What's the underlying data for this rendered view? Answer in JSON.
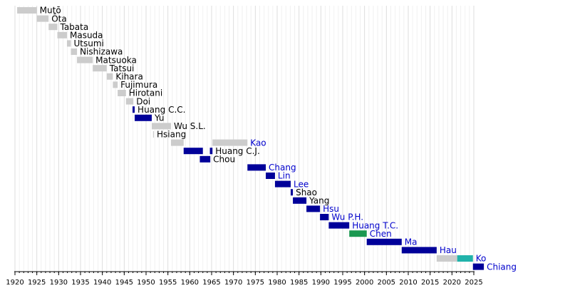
{
  "chart_data": {
    "type": "timeline",
    "title": "",
    "xlabel": "",
    "ylabel": "",
    "xlim": [
      1920,
      2025
    ],
    "x_ticks": [
      1920,
      1925,
      1930,
      1935,
      1940,
      1945,
      1950,
      1955,
      1960,
      1965,
      1970,
      1975,
      1980,
      1985,
      1990,
      1995,
      2000,
      2005,
      2010,
      2015,
      2020,
      2025
    ],
    "minor_grid_step": 1,
    "grid": true,
    "legend": "none",
    "colors": {
      "gray": "#cccccc",
      "navy": "#000099",
      "green": "#1a9850",
      "teal": "#20b2aa",
      "label_link": "#0000cc",
      "label_plain": "#000000",
      "grid_major": "#dddddd",
      "grid_minor": "#f0f0f0",
      "axis": "#000000"
    },
    "entries": [
      {
        "name": "Mutō",
        "start": 1920.5,
        "end": 1925.0,
        "color": "gray",
        "label_color": "label_plain"
      },
      {
        "name": "Ōta",
        "start": 1925.0,
        "end": 1927.7,
        "color": "gray",
        "label_color": "label_plain"
      },
      {
        "name": "Tabata",
        "start": 1927.7,
        "end": 1929.7,
        "color": "gray",
        "label_color": "label_plain"
      },
      {
        "name": "Masuda",
        "start": 1929.7,
        "end": 1931.9,
        "color": "gray",
        "label_color": "label_plain"
      },
      {
        "name": "Utsumi",
        "start": 1931.9,
        "end": 1932.8,
        "color": "gray",
        "label_color": "label_plain"
      },
      {
        "name": "Nishizawa",
        "start": 1932.8,
        "end": 1934.2,
        "color": "gray",
        "label_color": "label_plain"
      },
      {
        "name": "Matsuoka",
        "start": 1934.2,
        "end": 1937.8,
        "color": "gray",
        "label_color": "label_plain"
      },
      {
        "name": "Tatsui",
        "start": 1937.8,
        "end": 1941.0,
        "color": "gray",
        "label_color": "label_plain"
      },
      {
        "name": "Kihara",
        "start": 1941.0,
        "end": 1942.4,
        "color": "gray",
        "label_color": "label_plain"
      },
      {
        "name": "Fujimura",
        "start": 1942.4,
        "end": 1943.5,
        "color": "gray",
        "label_color": "label_plain"
      },
      {
        "name": "Hirotani",
        "start": 1943.5,
        "end": 1945.4,
        "color": "gray",
        "label_color": "label_plain"
      },
      {
        "name": "Doi",
        "start": 1945.4,
        "end": 1947.1,
        "color": "gray",
        "label_color": "label_plain"
      },
      {
        "name": "Huang C.C.",
        "start": 1946.9,
        "end": 1947.4,
        "color": "navy",
        "label_color": "label_plain"
      },
      {
        "name": "Yu",
        "start": 1947.4,
        "end": 1951.3,
        "color": "navy",
        "label_color": "label_plain"
      },
      {
        "name": "Wu S.L.",
        "start": 1951.3,
        "end": 1955.7,
        "color": "gray",
        "label_color": "label_plain"
      },
      {
        "name": "Hsiang",
        "start": 1951.6,
        "end": 1951.8,
        "color": "gray",
        "label_color": "label_plain"
      },
      {
        "name": "Kao",
        "start": 1965.2,
        "end": 1973.2,
        "color": "gray",
        "label_color": "label_link"
      },
      {
        "name": "",
        "start": 1955.7,
        "end": 1958.6,
        "color": "gray",
        "label_color": "label_plain"
      },
      {
        "name": "Huang C.J.",
        "start": 1964.6,
        "end": 1965.2,
        "color": "navy",
        "label_color": "label_plain"
      },
      {
        "name": "",
        "start": 1958.6,
        "end": 1963.0,
        "color": "navy",
        "label_color": "label_plain"
      },
      {
        "name": "Chou",
        "start": 1962.3,
        "end": 1964.7,
        "color": "navy",
        "label_color": "label_plain"
      },
      {
        "name": "Chang",
        "start": 1973.2,
        "end": 1977.4,
        "color": "navy",
        "label_color": "label_link"
      },
      {
        "name": "Lin",
        "start": 1977.4,
        "end": 1979.5,
        "color": "navy",
        "label_color": "label_link"
      },
      {
        "name": "Lee",
        "start": 1979.5,
        "end": 1983.1,
        "color": "navy",
        "label_color": "label_link"
      },
      {
        "name": "Shao",
        "start": 1983.1,
        "end": 1983.6,
        "color": "navy",
        "label_color": "label_plain"
      },
      {
        "name": "Yang",
        "start": 1983.6,
        "end": 1986.7,
        "color": "navy",
        "label_color": "label_plain"
      },
      {
        "name": "Hsu",
        "start": 1986.7,
        "end": 1989.8,
        "color": "navy",
        "label_color": "label_link"
      },
      {
        "name": "Wu P.H.",
        "start": 1989.8,
        "end": 1991.8,
        "color": "navy",
        "label_color": "label_link"
      },
      {
        "name": "Huang T.C.",
        "start": 1991.8,
        "end": 1996.5,
        "color": "navy",
        "label_color": "label_link"
      },
      {
        "name": "Chen",
        "start": 1996.5,
        "end": 2000.5,
        "color": "green",
        "label_color": "label_link"
      },
      {
        "name": "Ma",
        "start": 2000.5,
        "end": 2008.5,
        "color": "navy",
        "label_color": "label_link"
      },
      {
        "name": "Hau",
        "start": 2008.5,
        "end": 2016.5,
        "color": "navy",
        "label_color": "label_link"
      },
      {
        "name": "",
        "start": 2016.5,
        "end": 2021.2,
        "color": "gray",
        "label_color": "label_plain"
      },
      {
        "name": "Ko",
        "start": 2021.2,
        "end": 2024.8,
        "color": "teal",
        "label_color": "label_link"
      },
      {
        "name": "Chiang",
        "start": 2024.8,
        "end": 2027.3,
        "color": "navy",
        "label_color": "label_link"
      }
    ],
    "rows": [
      [
        0
      ],
      [
        1
      ],
      [
        2
      ],
      [
        3
      ],
      [
        4
      ],
      [
        5
      ],
      [
        6
      ],
      [
        7
      ],
      [
        8
      ],
      [
        9
      ],
      [
        10
      ],
      [
        11
      ],
      [
        12
      ],
      [
        13
      ],
      [
        14
      ],
      [
        15
      ],
      [
        17,
        16
      ],
      [
        19,
        18
      ],
      [
        20
      ],
      [
        21
      ],
      [
        22
      ],
      [
        23
      ],
      [
        24
      ],
      [
        25
      ],
      [
        26
      ],
      [
        27
      ],
      [
        28
      ],
      [
        29
      ],
      [
        30
      ],
      [
        31
      ],
      [
        32,
        33
      ],
      [
        34
      ]
    ]
  }
}
